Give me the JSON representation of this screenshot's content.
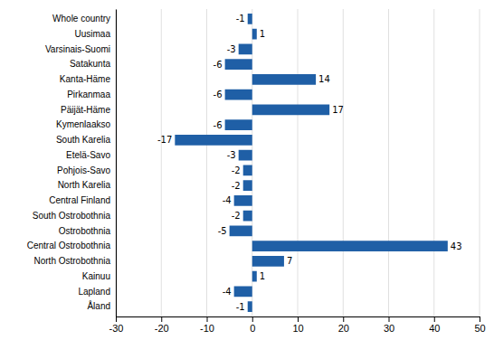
{
  "chart_data": {
    "type": "bar",
    "orientation": "horizontal",
    "categories": [
      "Whole country",
      "Uusimaa",
      "Varsinais-Suomi",
      "Satakunta",
      "Kanta-Häme",
      "Pirkanmaa",
      "Päijät-Häme",
      "Kymenlaakso",
      "South Karelia",
      "Etelä-Savo",
      "Pohjois-Savo",
      "North Karelia",
      "Central Finland",
      "South Ostrobothnia",
      "Ostrobothnia",
      "Central Ostrobothnia",
      "North Ostrobothnia",
      "Kainuu",
      "Lapland",
      "Åland"
    ],
    "values": [
      -1,
      1,
      -3,
      -6,
      14,
      -6,
      17,
      -6,
      -17,
      -3,
      -2,
      -2,
      -4,
      -2,
      -5,
      43,
      7,
      1,
      -4,
      -1
    ],
    "color": "#1f5fa6",
    "xlim": [
      -30,
      50
    ],
    "xticks": [
      -30,
      -20,
      -10,
      0,
      10,
      20,
      30,
      40,
      50
    ],
    "grid": true,
    "data_labels": true
  }
}
